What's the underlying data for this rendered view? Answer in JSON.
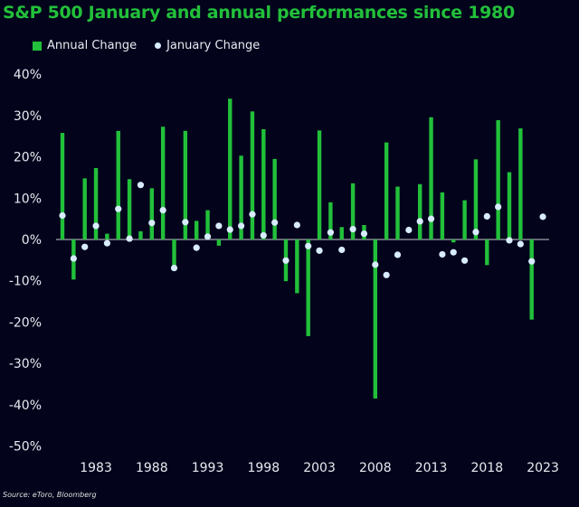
{
  "chart_data": {
    "type": "bar",
    "title": "S&P 500 January and annual performances since 1980",
    "source": "Source: eToro, Bloomberg",
    "ylim": [
      -50,
      40
    ],
    "yticks": [
      40,
      30,
      20,
      10,
      0,
      -10,
      -20,
      -30,
      -40,
      -50
    ],
    "ytick_labels": [
      "40%",
      "30%",
      "20%",
      "10%",
      "0%",
      "-10%",
      "-20%",
      "-30%",
      "-40%",
      "-50%"
    ],
    "xticks": [
      1983,
      1988,
      1993,
      1998,
      2003,
      2008,
      2013,
      2018,
      2023
    ],
    "xtick_labels": [
      "1983",
      "1988",
      "1993",
      "1998",
      "2003",
      "2008",
      "2013",
      "2018",
      "2023"
    ],
    "grid": false,
    "legend_placement": "top-left",
    "colors": {
      "annual": "#22c03a",
      "january": "#d8ecff",
      "background": "#03031c"
    },
    "series": [
      {
        "name": "Annual Change",
        "type": "bar",
        "x": [
          1980,
          1981,
          1982,
          1983,
          1984,
          1985,
          1986,
          1987,
          1988,
          1989,
          1990,
          1991,
          1992,
          1993,
          1994,
          1995,
          1996,
          1997,
          1998,
          1999,
          2000,
          2001,
          2002,
          2003,
          2004,
          2005,
          2006,
          2007,
          2008,
          2009,
          2010,
          2011,
          2012,
          2013,
          2014,
          2015,
          2016,
          2017,
          2018,
          2019,
          2020,
          2021,
          2022
        ],
        "values": [
          25.8,
          -9.7,
          14.8,
          17.3,
          1.4,
          26.3,
          14.6,
          2.0,
          12.4,
          27.3,
          -6.6,
          26.3,
          4.5,
          7.1,
          -1.5,
          34.1,
          20.3,
          31.0,
          26.7,
          19.5,
          -10.1,
          -13.0,
          -23.4,
          26.4,
          9.0,
          3.0,
          13.6,
          3.5,
          -38.5,
          23.5,
          12.8,
          0.0,
          13.4,
          29.6,
          11.4,
          -0.7,
          9.5,
          19.4,
          -6.2,
          28.9,
          16.3,
          26.9,
          -19.4
        ]
      },
      {
        "name": "January Change",
        "type": "scatter",
        "x": [
          1980,
          1981,
          1982,
          1983,
          1984,
          1985,
          1986,
          1987,
          1988,
          1989,
          1990,
          1991,
          1992,
          1993,
          1994,
          1995,
          1996,
          1997,
          1998,
          1999,
          2000,
          2001,
          2002,
          2003,
          2004,
          2005,
          2006,
          2007,
          2008,
          2009,
          2010,
          2011,
          2012,
          2013,
          2014,
          2015,
          2016,
          2017,
          2018,
          2019,
          2020,
          2021,
          2022,
          2023
        ],
        "values": [
          5.8,
          -4.6,
          -1.8,
          3.3,
          -0.9,
          7.4,
          0.2,
          13.2,
          4.0,
          7.1,
          -6.9,
          4.2,
          -2.0,
          0.7,
          3.3,
          2.4,
          3.3,
          6.1,
          1.0,
          4.1,
          -5.1,
          3.5,
          -1.6,
          -2.7,
          1.7,
          -2.5,
          2.5,
          1.4,
          -6.1,
          -8.6,
          -3.7,
          2.3,
          4.4,
          5.0,
          -3.6,
          -3.1,
          -5.1,
          1.8,
          5.6,
          7.9,
          -0.2,
          -1.1,
          -5.3,
          5.5
        ]
      }
    ]
  }
}
